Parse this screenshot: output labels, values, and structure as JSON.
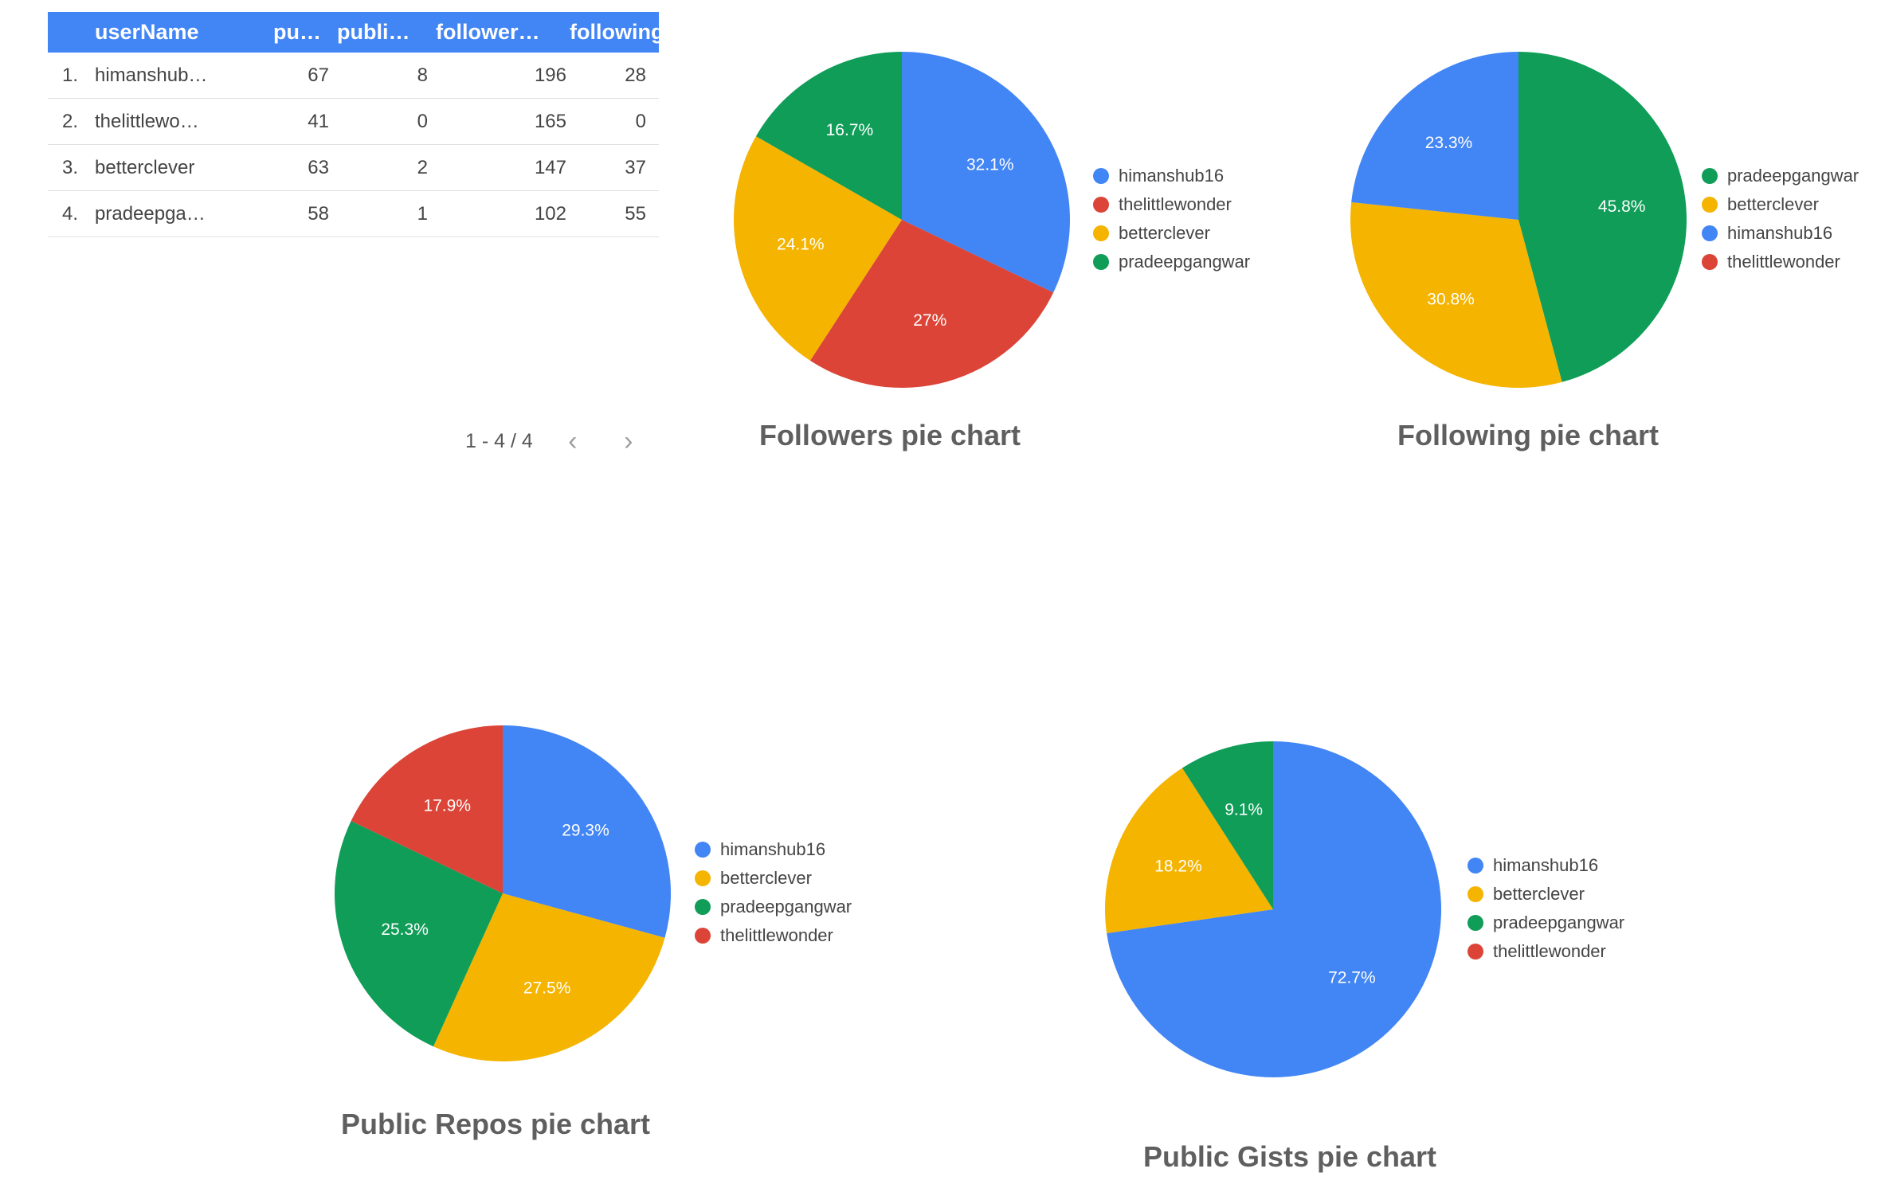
{
  "table": {
    "headers": [
      "userName",
      "pu…",
      "publi…",
      "follower…",
      "following"
    ],
    "rows": [
      {
        "index": "1.",
        "userName": "himanshub…",
        "public_repos": "67",
        "public_gists": "8",
        "followers": "196",
        "following": "28"
      },
      {
        "index": "2.",
        "userName": "thelittlewo…",
        "public_repos": "41",
        "public_gists": "0",
        "followers": "165",
        "following": "0"
      },
      {
        "index": "3.",
        "userName": "betterclever",
        "public_repos": "63",
        "public_gists": "2",
        "followers": "147",
        "following": "37"
      },
      {
        "index": "4.",
        "userName": "pradeepga…",
        "public_repos": "58",
        "public_gists": "1",
        "followers": "102",
        "following": "55"
      }
    ],
    "pagination": {
      "label": "1 - 4 / 4",
      "prev_icon": "chevron-left-icon",
      "next_icon": "chevron-right-icon"
    }
  },
  "colors": {
    "himanshub16": "#4285f4",
    "thelittlewonder": "#db4437",
    "betterclever": "#f4b400",
    "pradeepgangwar": "#0f9d58",
    "header_bg": "#4285f4"
  },
  "chart_data": [
    {
      "type": "pie",
      "title": "Followers pie chart",
      "labels": [
        "himanshub16",
        "thelittlewonder",
        "betterclever",
        "pradeepgangwar"
      ],
      "values": [
        196,
        165,
        147,
        102
      ],
      "percent_labels": [
        "32.1%",
        "27%",
        "24.1%",
        "16.7%"
      ],
      "colors": [
        "#4285f4",
        "#db4437",
        "#f4b400",
        "#0f9d58"
      ],
      "legend": "right"
    },
    {
      "type": "pie",
      "title": "Following pie chart",
      "labels": [
        "pradeepgangwar",
        "betterclever",
        "himanshub16",
        "thelittlewonder"
      ],
      "values": [
        55,
        37,
        28,
        0
      ],
      "percent_labels": [
        "45.8%",
        "30.8%",
        "23.3%",
        ""
      ],
      "colors": [
        "#0f9d58",
        "#f4b400",
        "#4285f4",
        "#db4437"
      ],
      "legend": "right"
    },
    {
      "type": "pie",
      "title": "Public Repos pie chart",
      "labels": [
        "himanshub16",
        "betterclever",
        "pradeepgangwar",
        "thelittlewonder"
      ],
      "values": [
        67,
        63,
        58,
        41
      ],
      "percent_labels": [
        "29.3%",
        "27.5%",
        "25.3%",
        "17.9%"
      ],
      "colors": [
        "#4285f4",
        "#f4b400",
        "#0f9d58",
        "#db4437"
      ],
      "legend": "right"
    },
    {
      "type": "pie",
      "title": "Public Gists pie chart",
      "labels": [
        "himanshub16",
        "betterclever",
        "pradeepgangwar",
        "thelittlewonder"
      ],
      "values": [
        8,
        2,
        1,
        0
      ],
      "percent_labels": [
        "72.7%",
        "18.2%",
        "9.1%",
        ""
      ],
      "colors": [
        "#4285f4",
        "#f4b400",
        "#0f9d58",
        "#db4437"
      ],
      "legend": "right"
    }
  ]
}
